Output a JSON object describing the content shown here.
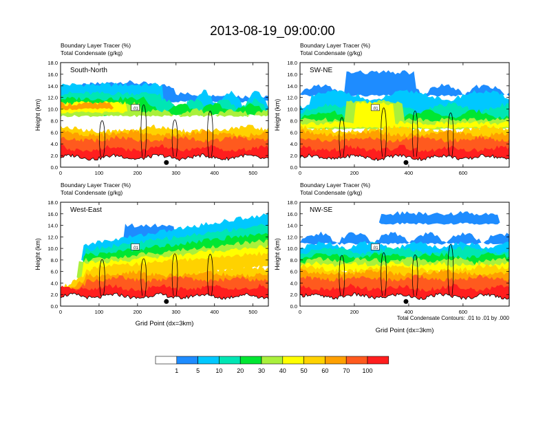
{
  "title": "2013-08-19_09:00:00",
  "footnote": "Total Condensate Contours: .01 to .01 by .000",
  "chart_data": {
    "type": "filled-contour-cross-section",
    "shared": {
      "subtitle_line1": "Boundary Layer Tracer   (%)",
      "subtitle_line2": "Total Condensate   (g/kg)",
      "ylabel": "Height (km)",
      "xlabel": "Grid Point (dx=3km)",
      "ylim": [
        0,
        18
      ],
      "yticks": [
        "0.0",
        "2.0",
        "4.0",
        "6.0",
        "8.0",
        "10.0",
        "12.0",
        "14.0",
        "16.0",
        "18.0"
      ],
      "contour_label": ".01"
    },
    "panels": [
      {
        "label": "South-North",
        "xmax": 540,
        "xticks": [
          0,
          100,
          200,
          300,
          400,
          500
        ],
        "marker_x": 275,
        "show_xlabel": false
      },
      {
        "label": "SW-NE",
        "xmax": 770,
        "xticks": [
          0,
          200,
          400,
          600
        ],
        "marker_x": 390,
        "show_xlabel": false
      },
      {
        "label": "West-East",
        "xmax": 540,
        "xticks": [
          0,
          100,
          200,
          300,
          400,
          500
        ],
        "marker_x": 275,
        "show_xlabel": true
      },
      {
        "label": "NW-SE",
        "xmax": 770,
        "xticks": [
          0,
          200,
          400,
          600
        ],
        "marker_x": 390,
        "show_xlabel": true
      }
    ],
    "colorbar": {
      "labels": [
        "1",
        "5",
        "10",
        "20",
        "30",
        "40",
        "50",
        "60",
        "70",
        "100"
      ],
      "colors": [
        "#ffffff",
        "#1e8cff",
        "#00c8ff",
        "#00e6b4",
        "#00e632",
        "#aaf03c",
        "#ffff00",
        "#ffd200",
        "#ffa000",
        "#ff5a1e",
        "#ff1e1e"
      ]
    }
  }
}
